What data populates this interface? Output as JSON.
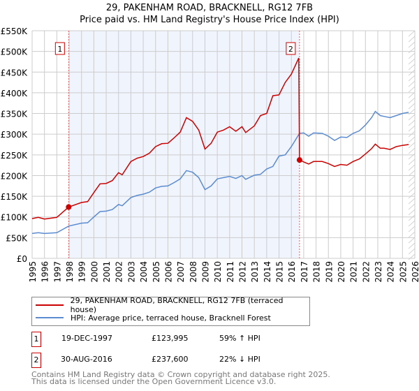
{
  "chart_data": {
    "type": "line",
    "title": "29, PAKENHAM ROAD, BRACKNELL, RG12 7FB",
    "subtitle": "Price paid vs. HM Land Registry's House Price Index (HPI)",
    "xlim": [
      1995,
      2026
    ],
    "ylim": [
      0,
      550000
    ],
    "x_ticks": [
      "1995",
      "1996",
      "1997",
      "1998",
      "1999",
      "2000",
      "2001",
      "2002",
      "2003",
      "2004",
      "2005",
      "2006",
      "2007",
      "2008",
      "2009",
      "2010",
      "2011",
      "2012",
      "2013",
      "2014",
      "2015",
      "2016",
      "2017",
      "2018",
      "2019",
      "2020",
      "2021",
      "2022",
      "2023",
      "2024",
      "2025",
      "2026"
    ],
    "y_ticks": [
      "£0",
      "£50K",
      "£100K",
      "£150K",
      "£200K",
      "£250K",
      "£300K",
      "£350K",
      "£400K",
      "£450K",
      "£500K",
      "£550K"
    ],
    "grid": true,
    "series": [
      {
        "name": "29, PAKENHAM ROAD, BRACKNELL, RG12 7FB (terraced house)",
        "color": "#cc0000",
        "x": [
          1995,
          1995.5,
          1996,
          1997,
          1997.96,
          1999,
          1999.5,
          2000,
          2000.5,
          2001,
          2001.5,
          2002,
          2002.3,
          2003,
          2003.5,
          2004,
          2004.5,
          2005,
          2005.5,
          2006,
          2006.5,
          2007,
          2007.5,
          2008,
          2008.5,
          2009,
          2009.5,
          2010,
          2010.5,
          2011,
          2011.5,
          2012,
          2012.3,
          2013,
          2013.5,
          2014,
          2014.5,
          2015,
          2015.5,
          2016,
          2016.6,
          2016.66,
          2017,
          2017.4,
          2017.8,
          2018.5,
          2019,
          2019.5,
          2020,
          2020.5,
          2021,
          2021.5,
          2022,
          2022.5,
          2022.8,
          2023.2,
          2023.5,
          2024,
          2024.5,
          2025,
          2025.5
        ],
        "y": [
          96,
          99,
          95,
          99,
          124,
          135,
          137,
          159,
          180,
          181,
          188,
          207,
          202,
          234,
          242,
          246,
          254,
          270,
          277,
          278,
          291,
          305,
          340,
          331,
          310,
          264,
          278,
          305,
          310,
          318,
          307,
          318,
          304,
          320,
          345,
          350,
          393,
          395,
          425,
          445,
          484,
          237.6,
          233,
          228,
          234,
          234,
          229,
          222,
          227,
          225,
          234,
          240,
          252,
          265,
          276,
          266,
          266,
          263,
          270,
          273,
          275
        ]
      },
      {
        "name": "HPI: Average price, terraced house, Bracknell Forest",
        "color": "#5b8bd0",
        "x": [
          1995,
          1995.5,
          1996,
          1997,
          1997.96,
          1999,
          1999.5,
          2000,
          2000.5,
          2001,
          2001.5,
          2002,
          2002.3,
          2003,
          2003.5,
          2004,
          2004.5,
          2005,
          2005.5,
          2006,
          2006.5,
          2007,
          2007.5,
          2008,
          2008.5,
          2009,
          2009.5,
          2010,
          2010.5,
          2011,
          2011.5,
          2012,
          2012.3,
          2013,
          2013.5,
          2014,
          2014.5,
          2015,
          2015.5,
          2016,
          2016.66,
          2017,
          2017.4,
          2017.8,
          2018.5,
          2019,
          2019.5,
          2020,
          2020.5,
          2021,
          2021.5,
          2022,
          2022.5,
          2022.8,
          2023.2,
          2023.5,
          2024,
          2024.5,
          2025,
          2025.5
        ],
        "y": [
          60,
          62,
          60,
          62,
          78,
          85,
          86,
          100,
          113,
          114,
          118,
          130,
          127,
          147,
          152,
          155,
          160,
          170,
          174,
          175,
          183,
          192,
          212,
          208,
          195,
          166,
          175,
          192,
          195,
          198,
          193,
          200,
          191,
          201,
          203,
          216,
          222,
          247,
          250,
          270,
          302,
          303,
          295,
          303,
          302,
          295,
          285,
          293,
          292,
          302,
          308,
          322,
          340,
          355,
          345,
          343,
          340,
          345,
          350,
          353
        ]
      }
    ],
    "y_unit": "thousands GBP",
    "annotations": [
      {
        "label": "1",
        "x": 1997.96,
        "y": 123995
      },
      {
        "label": "2",
        "x": 2016.66,
        "y": 237600
      }
    ],
    "legend": "bottom"
  },
  "sales": [
    {
      "num": "1",
      "date": "19-DEC-1997",
      "price": "£123,995",
      "hpi": "59% ↑ HPI"
    },
    {
      "num": "2",
      "date": "30-AUG-2016",
      "price": "£237,600",
      "hpi": "22% ↓ HPI"
    }
  ],
  "footer": {
    "line1": "Contains HM Land Registry data © Crown copyright and database right 2025.",
    "line2": "This data is licensed under the Open Government Licence v3.0."
  }
}
